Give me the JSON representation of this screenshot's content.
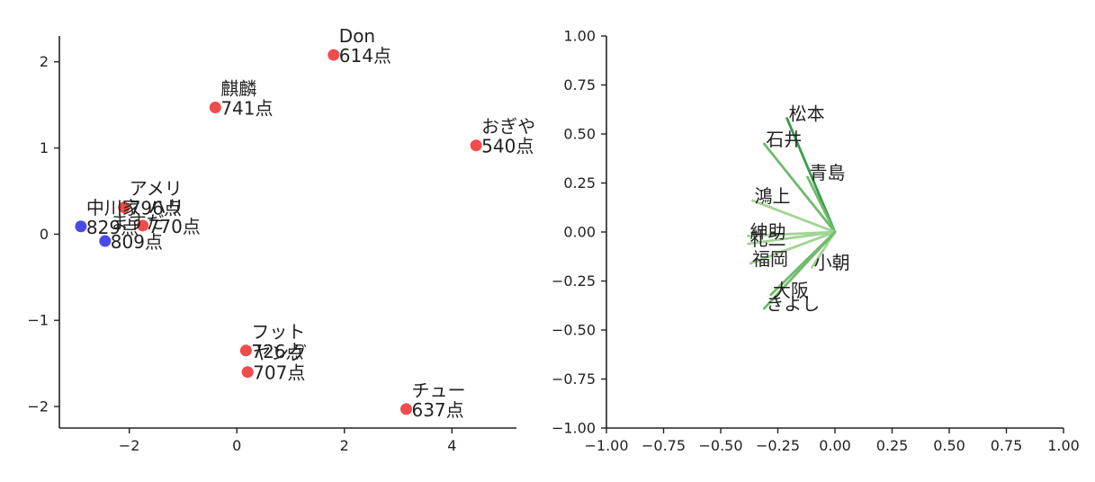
{
  "chart_data": [
    {
      "type": "scatter",
      "title": "",
      "xlabel": "",
      "ylabel": "",
      "xlim": [
        -3.3,
        5.2
      ],
      "ylim": [
        -2.25,
        2.3
      ],
      "xticks": [
        -2,
        0,
        2,
        4
      ],
      "yticks": [
        -2,
        -1,
        0,
        1,
        2
      ],
      "tick_labels_x": [
        "−2",
        "0",
        "2",
        "4"
      ],
      "tick_labels_y": [
        "−2",
        "−1",
        "0",
        "1",
        "2"
      ],
      "grid": false,
      "colors": {
        "red": "#f24b4b",
        "blue": "#4949e9"
      },
      "points": [
        {
          "name": "Don",
          "score": "614点",
          "x": 1.8,
          "y": 2.08,
          "color": "red"
        },
        {
          "name": "麒麟",
          "score": "741点",
          "x": -0.4,
          "y": 1.47,
          "color": "red"
        },
        {
          "name": "おぎや",
          "score": "540点",
          "x": 4.45,
          "y": 1.03,
          "color": "red"
        },
        {
          "name": "アメリ",
          "score": "796点",
          "x": -2.1,
          "y": 0.31,
          "color": "red"
        },
        {
          "name": "ハリ",
          "score": "770点",
          "x": -1.75,
          "y": 0.1,
          "color": "red"
        },
        {
          "name": "中川家",
          "score": "829点",
          "x": -2.9,
          "y": 0.09,
          "color": "blue"
        },
        {
          "name": "ますだ",
          "score": "809点",
          "x": -2.45,
          "y": -0.08,
          "color": "blue"
        },
        {
          "name": "フット",
          "score": "726点",
          "x": 0.17,
          "y": -1.35,
          "color": "red"
        },
        {
          "name": "ヤング",
          "score": "707点",
          "x": 0.2,
          "y": -1.6,
          "color": "red"
        },
        {
          "name": "チュー",
          "score": "637点",
          "x": 3.15,
          "y": -2.03,
          "color": "red"
        }
      ]
    },
    {
      "type": "line",
      "title": "",
      "xlabel": "",
      "ylabel": "",
      "xlim": [
        -1,
        1
      ],
      "ylim": [
        -1,
        1
      ],
      "xticks": [
        -1,
        -0.75,
        -0.5,
        -0.25,
        0,
        0.25,
        0.5,
        0.75,
        1
      ],
      "yticks": [
        -1,
        -0.75,
        -0.5,
        -0.25,
        0,
        0.25,
        0.5,
        0.75,
        1
      ],
      "tick_labels_x": [
        "−1.00",
        "−0.75",
        "−0.50",
        "−0.25",
        "0.00",
        "0.25",
        "0.50",
        "0.75",
        "1.00"
      ],
      "tick_labels_y": [
        "−1.00",
        "−0.75",
        "−0.50",
        "−0.25",
        "0.00",
        "0.25",
        "0.50",
        "0.75",
        "1.00"
      ],
      "grid": false,
      "colors": {
        "dark": "#3a9a4e",
        "mid": "#6fbb6c",
        "light": "#a1d494"
      },
      "vectors": [
        {
          "name": "松本",
          "x": -0.21,
          "y": 0.58,
          "shade": "dark"
        },
        {
          "name": "石井",
          "x": -0.31,
          "y": 0.45,
          "shade": "mid"
        },
        {
          "name": "青島",
          "x": -0.12,
          "y": 0.28,
          "shade": "mid"
        },
        {
          "name": "鴻上",
          "x": -0.36,
          "y": 0.16,
          "shade": "light"
        },
        {
          "name": "紳助",
          "x": -0.38,
          "y": -0.02,
          "shade": "light"
        },
        {
          "name": "礼二",
          "x": -0.38,
          "y": -0.06,
          "shade": "light"
        },
        {
          "name": "福岡",
          "x": -0.37,
          "y": -0.16,
          "shade": "light"
        },
        {
          "name": "小朝",
          "x": -0.1,
          "y": -0.18,
          "shade": "light"
        },
        {
          "name": "大阪",
          "x": -0.28,
          "y": -0.32,
          "shade": "mid"
        },
        {
          "name": "きよし",
          "x": -0.31,
          "y": -0.39,
          "shade": "mid"
        }
      ]
    }
  ]
}
